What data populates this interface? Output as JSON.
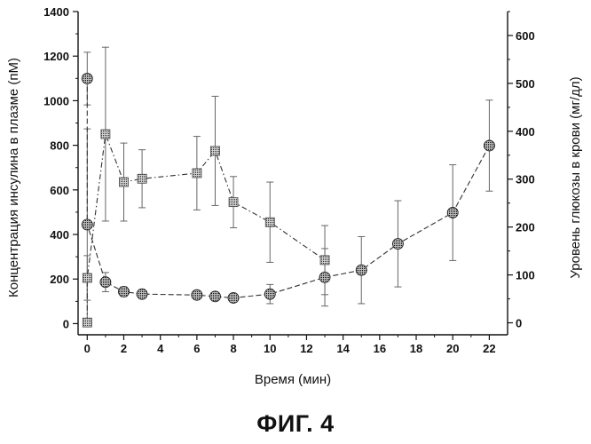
{
  "figure_caption": "ФИГ. 4",
  "chart_data": {
    "type": "line",
    "xlabel": "Время (мин)",
    "ylabel_left": "Концентрация инсулина в плазме (пМ)",
    "ylabel_right": "Уровень глюкозы в крови (мг/дл)",
    "xlim": [
      -0.5,
      23
    ],
    "ylim_left": [
      -50,
      1400
    ],
    "ylim_right": [
      -25,
      650
    ],
    "x_ticks": [
      0,
      2,
      4,
      6,
      8,
      10,
      12,
      14,
      16,
      18,
      20,
      22
    ],
    "y_ticks_left": [
      0,
      200,
      400,
      600,
      800,
      1000,
      1200,
      1400
    ],
    "y_ticks_right": [
      0,
      100,
      200,
      300,
      400,
      500,
      600
    ],
    "grid": false,
    "legend": "none",
    "series": [
      {
        "axis": "left",
        "marker": "square",
        "x": [
          0,
          0,
          1,
          2,
          3,
          6,
          7,
          8,
          10,
          13
        ],
        "y": [
          5,
          205,
          850,
          635,
          650,
          675,
          775,
          545,
          455,
          285
        ],
        "err": [
          15,
          100,
          390,
          175,
          130,
          165,
          245,
          115,
          180,
          155
        ]
      },
      {
        "axis": "right",
        "marker": "circle",
        "x": [
          0,
          0,
          1,
          2,
          3,
          6,
          7,
          8,
          10,
          13,
          15,
          17,
          20,
          22
        ],
        "y": [
          510,
          205,
          85,
          65,
          60,
          58,
          55,
          52,
          60,
          95,
          110,
          165,
          230,
          370
        ],
        "err": [
          55,
          200,
          20,
          10,
          8,
          8,
          8,
          8,
          20,
          60,
          70,
          90,
          100,
          95
        ]
      }
    ]
  }
}
